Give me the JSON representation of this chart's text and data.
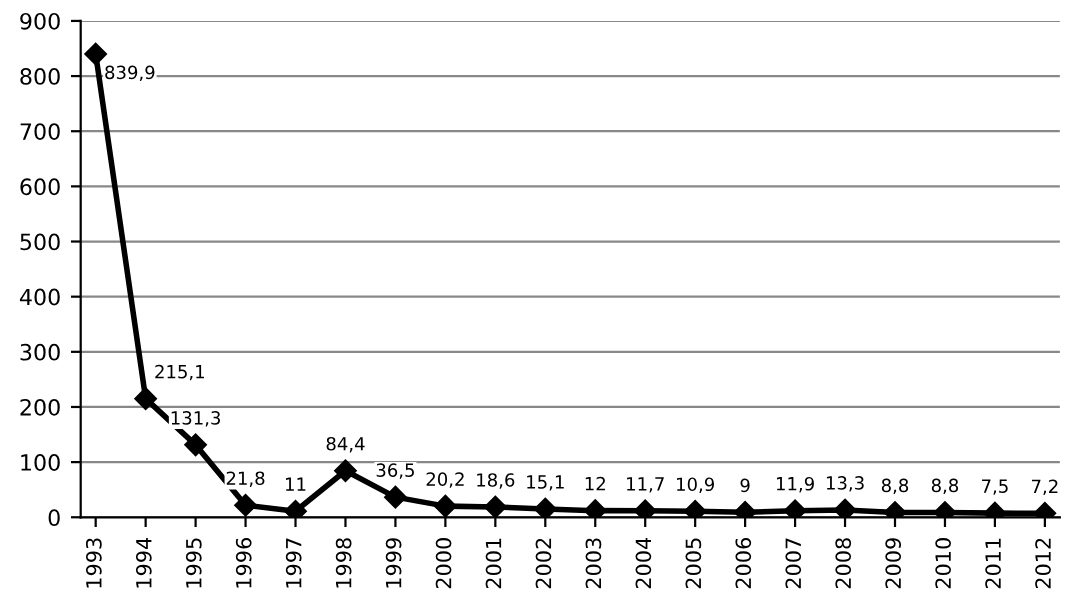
{
  "chart_data": {
    "type": "line",
    "categories": [
      "1993",
      "1994",
      "1995",
      "1996",
      "1997",
      "1998",
      "1999",
      "2000",
      "2001",
      "2002",
      "2003",
      "2004",
      "2005",
      "2006",
      "2007",
      "2008",
      "2009",
      "2010",
      "2011",
      "2012"
    ],
    "values": [
      839.9,
      215.1,
      131.3,
      21.8,
      11,
      84.4,
      36.5,
      20.2,
      18.6,
      15.1,
      12,
      11.7,
      10.9,
      9,
      11.9,
      13.3,
      8.8,
      8.8,
      7.5,
      7.2
    ],
    "value_labels": [
      "839,9",
      "215,1",
      "131,3",
      "21,8",
      "11",
      "84,4",
      "36,5",
      "20,2",
      "18,6",
      "15,1",
      "12",
      "11,7",
      "10,9",
      "9",
      "11,9",
      "13,3",
      "8,8",
      "8,8",
      "7,5",
      "7,2"
    ],
    "color": "#000000",
    "ylim": [
      0,
      900
    ],
    "yticks": [
      0,
      100,
      200,
      300,
      400,
      500,
      600,
      700,
      800,
      900
    ],
    "grid": "y",
    "marker": "diamond",
    "line_style": "solid",
    "legend": false
  }
}
